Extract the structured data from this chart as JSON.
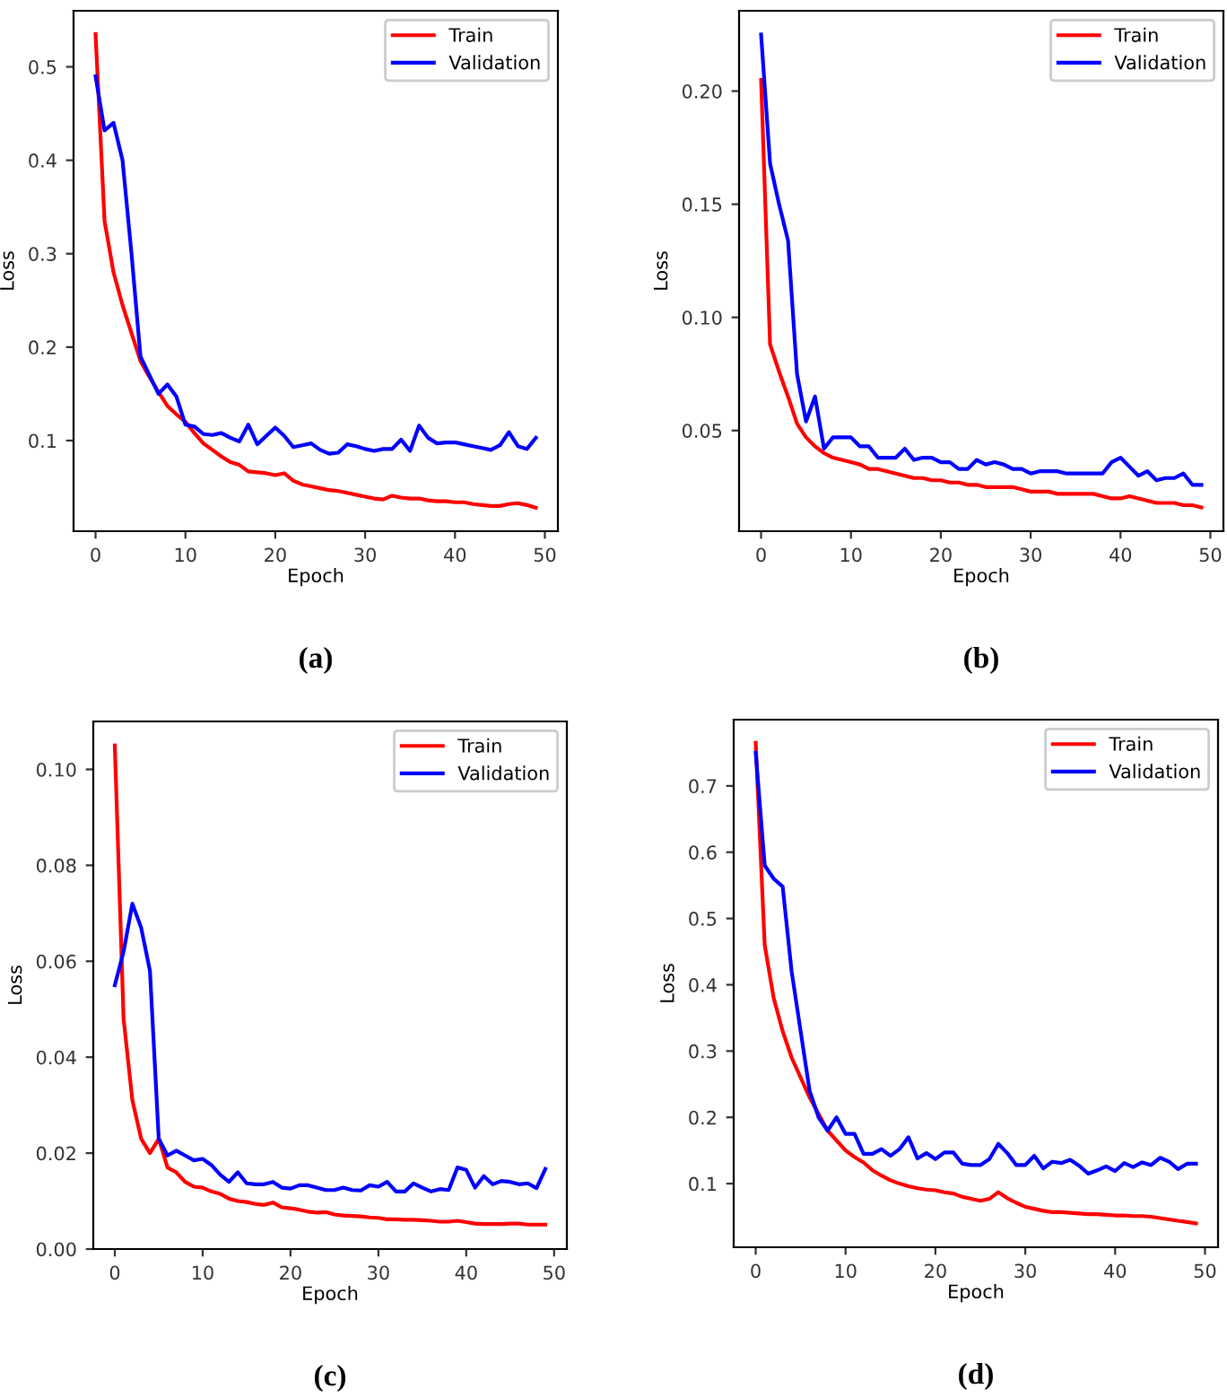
{
  "chart_data": [
    {
      "type": "line",
      "xlabel": "Epoch",
      "ylabel": "Loss",
      "annotations": [
        "(a)"
      ],
      "x": [
        0,
        1,
        2,
        3,
        4,
        5,
        6,
        7,
        8,
        9,
        10,
        11,
        12,
        13,
        14,
        15,
        16,
        17,
        18,
        19,
        20,
        21,
        22,
        23,
        24,
        25,
        26,
        27,
        28,
        29,
        30,
        31,
        32,
        33,
        34,
        35,
        36,
        37,
        38,
        39,
        40,
        41,
        42,
        43,
        44,
        45,
        46,
        47,
        48,
        49
      ],
      "legend": "top right",
      "grid": false,
      "xlim": [
        -2.45,
        51.45
      ],
      "xticks": [
        0,
        10,
        20,
        30,
        40,
        50
      ],
      "ylim": [
        0.003,
        0.56
      ],
      "yticks": [
        0.1,
        0.2,
        0.3,
        0.4,
        0.5
      ],
      "series": [
        {
          "name": "Train",
          "color": "#ff0000",
          "values": [
            0.535,
            0.335,
            0.28,
            0.245,
            0.215,
            0.185,
            0.168,
            0.152,
            0.137,
            0.128,
            0.12,
            0.108,
            0.097,
            0.09,
            0.083,
            0.077,
            0.074,
            0.067,
            0.066,
            0.065,
            0.063,
            0.065,
            0.057,
            0.053,
            0.051,
            0.049,
            0.047,
            0.046,
            0.044,
            0.042,
            0.04,
            0.038,
            0.037,
            0.041,
            0.039,
            0.038,
            0.038,
            0.036,
            0.035,
            0.035,
            0.034,
            0.034,
            0.032,
            0.031,
            0.03,
            0.03,
            0.032,
            0.033,
            0.031,
            0.028
          ]
        },
        {
          "name": "Validation",
          "color": "#0000ff",
          "values": [
            0.49,
            0.432,
            0.44,
            0.4,
            0.3,
            0.19,
            0.17,
            0.15,
            0.16,
            0.147,
            0.117,
            0.115,
            0.107,
            0.106,
            0.108,
            0.103,
            0.099,
            0.117,
            0.096,
            0.105,
            0.114,
            0.105,
            0.093,
            0.095,
            0.097,
            0.09,
            0.086,
            0.087,
            0.096,
            0.094,
            0.091,
            0.089,
            0.091,
            0.091,
            0.101,
            0.089,
            0.116,
            0.103,
            0.097,
            0.098,
            0.098,
            0.096,
            0.094,
            0.092,
            0.09,
            0.095,
            0.109,
            0.094,
            0.091,
            0.103
          ]
        }
      ]
    },
    {
      "type": "line",
      "xlabel": "Epoch",
      "ylabel": "Loss",
      "annotations": [
        "(b)"
      ],
      "x": [
        0,
        1,
        2,
        3,
        4,
        5,
        6,
        7,
        8,
        9,
        10,
        11,
        12,
        13,
        14,
        15,
        16,
        17,
        18,
        19,
        20,
        21,
        22,
        23,
        24,
        25,
        26,
        27,
        28,
        29,
        30,
        31,
        32,
        33,
        34,
        35,
        36,
        37,
        38,
        39,
        40,
        41,
        42,
        43,
        44,
        45,
        46,
        47,
        48,
        49
      ],
      "legend": "top right",
      "grid": false,
      "xlim": [
        -2.45,
        51.45
      ],
      "xticks": [
        0,
        10,
        20,
        30,
        40,
        50
      ],
      "ylim": [
        0.0055,
        0.2355
      ],
      "yticks": [
        {
          "value": 0.05,
          "label": "0.05"
        },
        {
          "value": 0.1,
          "label": "0.10"
        },
        {
          "value": 0.15,
          "label": "0.15"
        },
        {
          "value": 0.2,
          "label": "0.20"
        }
      ],
      "series": [
        {
          "name": "Train",
          "color": "#ff0000",
          "values": [
            0.205,
            0.088,
            0.076,
            0.065,
            0.053,
            0.047,
            0.043,
            0.04,
            0.038,
            0.037,
            0.036,
            0.035,
            0.033,
            0.033,
            0.032,
            0.031,
            0.03,
            0.029,
            0.029,
            0.028,
            0.028,
            0.027,
            0.027,
            0.026,
            0.026,
            0.025,
            0.025,
            0.025,
            0.025,
            0.024,
            0.023,
            0.023,
            0.023,
            0.022,
            0.022,
            0.022,
            0.022,
            0.022,
            0.021,
            0.02,
            0.02,
            0.021,
            0.02,
            0.019,
            0.018,
            0.018,
            0.018,
            0.017,
            0.017,
            0.016
          ]
        },
        {
          "name": "Validation",
          "color": "#0000ff",
          "values": [
            0.225,
            0.168,
            0.15,
            0.134,
            0.075,
            0.054,
            0.065,
            0.042,
            0.047,
            0.047,
            0.047,
            0.043,
            0.043,
            0.038,
            0.038,
            0.038,
            0.042,
            0.037,
            0.038,
            0.038,
            0.036,
            0.036,
            0.033,
            0.033,
            0.037,
            0.035,
            0.036,
            0.035,
            0.033,
            0.033,
            0.031,
            0.032,
            0.032,
            0.032,
            0.031,
            0.031,
            0.031,
            0.031,
            0.031,
            0.036,
            0.038,
            0.034,
            0.03,
            0.032,
            0.028,
            0.029,
            0.029,
            0.031,
            0.026,
            0.026
          ]
        }
      ]
    },
    {
      "type": "line",
      "xlabel": "Epoch",
      "ylabel": "Loss",
      "annotations": [
        "(c)"
      ],
      "x": [
        0,
        1,
        2,
        3,
        4,
        5,
        6,
        7,
        8,
        9,
        10,
        11,
        12,
        13,
        14,
        15,
        16,
        17,
        18,
        19,
        20,
        21,
        22,
        23,
        24,
        25,
        26,
        27,
        28,
        29,
        30,
        31,
        32,
        33,
        34,
        35,
        36,
        37,
        38,
        39,
        40,
        41,
        42,
        43,
        44,
        45,
        46,
        47,
        48,
        49
      ],
      "legend": "top right",
      "grid": false,
      "xlim": [
        -2.45,
        51.45
      ],
      "xticks": [
        0,
        10,
        20,
        30,
        40,
        50
      ],
      "ylim": [
        0,
        0.11
      ],
      "yticks": [
        {
          "value": 0,
          "label": "0.00"
        },
        {
          "value": 0.02,
          "label": "0.02"
        },
        {
          "value": 0.04,
          "label": "0.04"
        },
        {
          "value": 0.06,
          "label": "0.06"
        },
        {
          "value": 0.08,
          "label": "0.08"
        },
        {
          "value": 0.1,
          "label": "0.10"
        }
      ],
      "series": [
        {
          "name": "Train",
          "color": "#ff0000",
          "values": [
            0.105,
            0.048,
            0.031,
            0.023,
            0.02,
            0.023,
            0.017,
            0.016,
            0.014,
            0.013,
            0.0128,
            0.012,
            0.0115,
            0.0105,
            0.01,
            0.0098,
            0.0094,
            0.0092,
            0.0097,
            0.0087,
            0.0085,
            0.0082,
            0.0078,
            0.0076,
            0.0077,
            0.0072,
            0.007,
            0.0069,
            0.0068,
            0.0066,
            0.0065,
            0.0062,
            0.0062,
            0.0061,
            0.0061,
            0.006,
            0.0059,
            0.0057,
            0.0057,
            0.0059,
            0.0056,
            0.0053,
            0.0052,
            0.0052,
            0.0052,
            0.0053,
            0.0053,
            0.0051,
            0.0051,
            0.0051
          ]
        },
        {
          "name": "Validation",
          "color": "#0000ff",
          "values": [
            0.055,
            0.062,
            0.072,
            0.067,
            0.058,
            0.023,
            0.0195,
            0.0205,
            0.0195,
            0.0185,
            0.0188,
            0.0175,
            0.0155,
            0.014,
            0.016,
            0.0137,
            0.0135,
            0.0135,
            0.014,
            0.0128,
            0.0126,
            0.0133,
            0.0133,
            0.0128,
            0.0123,
            0.0123,
            0.0128,
            0.0123,
            0.0122,
            0.0133,
            0.013,
            0.014,
            0.012,
            0.012,
            0.0137,
            0.0128,
            0.012,
            0.0125,
            0.0123,
            0.017,
            0.0165,
            0.0128,
            0.0152,
            0.0135,
            0.0142,
            0.014,
            0.0135,
            0.0137,
            0.0127,
            0.0167
          ]
        }
      ]
    },
    {
      "type": "line",
      "xlabel": "Epoch",
      "ylabel": "Loss",
      "annotations": [
        "(d)"
      ],
      "x": [
        0,
        1,
        2,
        3,
        4,
        5,
        6,
        7,
        8,
        9,
        10,
        11,
        12,
        13,
        14,
        15,
        16,
        17,
        18,
        19,
        20,
        21,
        22,
        23,
        24,
        25,
        26,
        27,
        28,
        29,
        30,
        31,
        32,
        33,
        34,
        35,
        36,
        37,
        38,
        39,
        40,
        41,
        42,
        43,
        44,
        45,
        46,
        47,
        48,
        49
      ],
      "legend": "top right",
      "grid": false,
      "xlim": [
        -2.45,
        51.45
      ],
      "xticks": [
        0,
        10,
        20,
        30,
        40,
        50
      ],
      "ylim": [
        0.004,
        0.8
      ],
      "yticks": [
        0.1,
        0.2,
        0.3,
        0.4,
        0.5,
        0.6,
        0.7
      ],
      "series": [
        {
          "name": "Train",
          "color": "#ff0000",
          "values": [
            0.765,
            0.46,
            0.38,
            0.33,
            0.29,
            0.26,
            0.23,
            0.205,
            0.18,
            0.165,
            0.15,
            0.14,
            0.132,
            0.12,
            0.112,
            0.105,
            0.1,
            0.096,
            0.093,
            0.091,
            0.09,
            0.087,
            0.085,
            0.08,
            0.077,
            0.074,
            0.077,
            0.087,
            0.078,
            0.071,
            0.065,
            0.062,
            0.059,
            0.057,
            0.057,
            0.056,
            0.055,
            0.054,
            0.054,
            0.053,
            0.052,
            0.052,
            0.051,
            0.051,
            0.05,
            0.048,
            0.046,
            0.044,
            0.042,
            0.04
          ]
        },
        {
          "name": "Validation",
          "color": "#0000ff",
          "values": [
            0.75,
            0.58,
            0.56,
            0.548,
            0.42,
            0.33,
            0.24,
            0.2,
            0.18,
            0.2,
            0.175,
            0.175,
            0.145,
            0.145,
            0.152,
            0.142,
            0.152,
            0.17,
            0.138,
            0.146,
            0.137,
            0.147,
            0.147,
            0.13,
            0.128,
            0.128,
            0.137,
            0.16,
            0.146,
            0.128,
            0.128,
            0.142,
            0.123,
            0.133,
            0.131,
            0.136,
            0.127,
            0.115,
            0.12,
            0.126,
            0.119,
            0.131,
            0.125,
            0.132,
            0.128,
            0.139,
            0.133,
            0.122,
            0.13,
            0.13
          ]
        }
      ]
    }
  ]
}
